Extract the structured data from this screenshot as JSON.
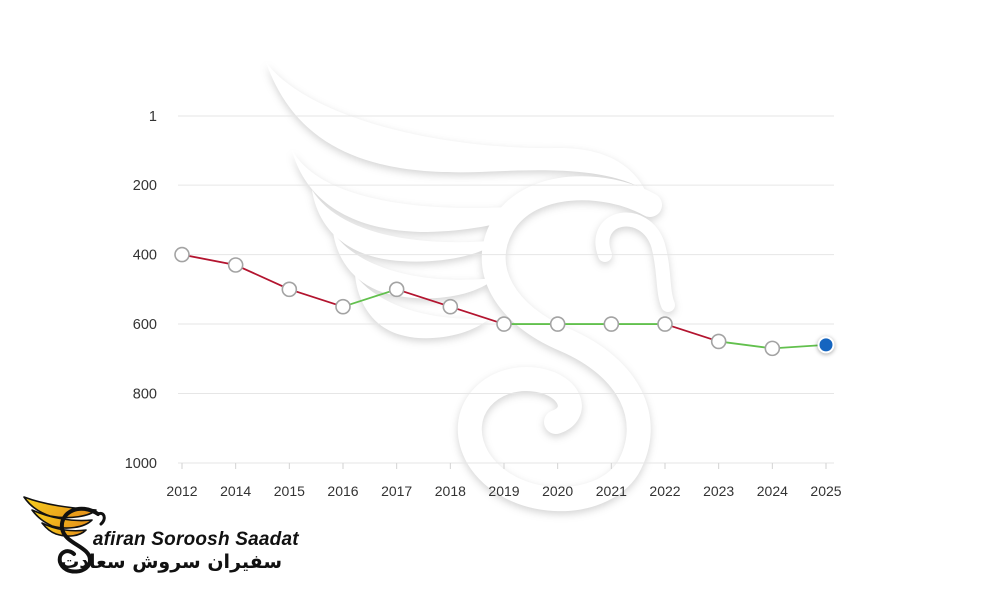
{
  "brand": {
    "name_en": "Safiran Soroosh Saadat",
    "name_fa": "سفیران سروش سعادت",
    "colors": {
      "wing_light": "#f7d21e",
      "wing_dark": "#e8961a",
      "ink": "#111111"
    }
  },
  "chart_data": {
    "type": "line",
    "categories": [
      "2012",
      "2014",
      "2015",
      "2016",
      "2017",
      "2018",
      "2019",
      "2020",
      "2021",
      "2022",
      "2023",
      "2024",
      "2025"
    ],
    "values": [
      400,
      430,
      500,
      550,
      500,
      550,
      600,
      600,
      600,
      600,
      650,
      670,
      660
    ],
    "yticks": [
      1,
      200,
      400,
      600,
      800,
      1000
    ],
    "ylim": [
      1,
      1000
    ],
    "y_inverted": true,
    "grid": true,
    "segment_colors": [
      "#b3142f",
      "#b3142f",
      "#b3142f",
      "#62c04d",
      "#b3142f",
      "#b3142f",
      "#62c04d",
      "#62c04d",
      "#62c04d",
      "#b3142f",
      "#62c04d",
      "#62c04d"
    ],
    "highlighted_category": "2025",
    "colors": {
      "grid": "#e6e6e6",
      "tick_mark": "#d2d2d2",
      "tick_text": "#333333",
      "point_fill": "#ffffff",
      "point_stroke": "#a3a3a3",
      "highlight": "#1565c0"
    }
  }
}
